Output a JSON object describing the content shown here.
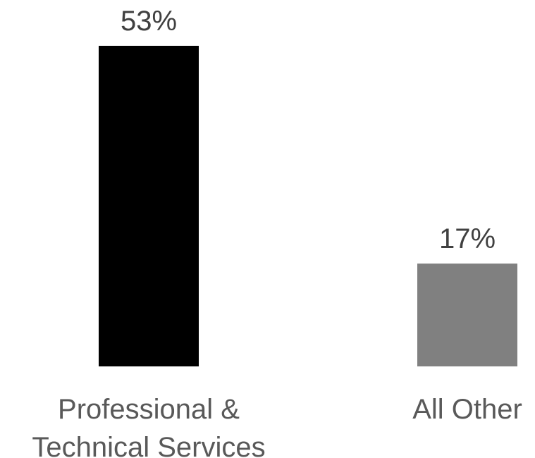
{
  "chart_data": {
    "type": "bar",
    "title": "",
    "xlabel": "",
    "ylabel": "",
    "categories": [
      "Professional & Technical Services",
      "All Other"
    ],
    "category_label_lines": [
      [
        "Professional &",
        "Technical Services"
      ],
      [
        "All Other"
      ]
    ],
    "values": [
      53,
      17
    ],
    "value_labels": [
      "53%",
      "17%"
    ],
    "bar_colors": [
      "#000000",
      "#808080"
    ],
    "ylim": [
      0,
      53
    ],
    "grid": false,
    "legend": "none"
  }
}
